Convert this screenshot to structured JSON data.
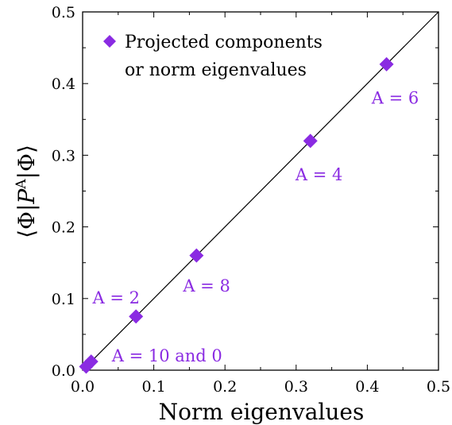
{
  "chart_data": {
    "type": "scatter",
    "xlabel": "Norm eigenvalues",
    "ylabel": "⟨Φ|P^A|Φ⟩",
    "ylabel_parts": {
      "left": "⟨Φ|",
      "P": "P",
      "sup": "A",
      "right": "|Φ⟩"
    },
    "xlim": [
      0,
      0.5
    ],
    "ylim": [
      0,
      0.5
    ],
    "x_ticks": [
      0.0,
      0.1,
      0.2,
      0.3,
      0.4,
      0.5
    ],
    "y_ticks": [
      0.0,
      0.1,
      0.2,
      0.3,
      0.4,
      0.5
    ],
    "x_tick_labels": [
      "0.0",
      "0.1",
      "0.2",
      "0.3",
      "0.4",
      "0.5"
    ],
    "y_tick_labels": [
      "0.0",
      "0.1",
      "0.2",
      "0.3",
      "0.4",
      "0.5"
    ],
    "grid": false,
    "legend": {
      "placement": "top-left",
      "entries": [
        "Projected components",
        "or norm eigenvalues"
      ]
    },
    "diagonal_line": {
      "from": [
        0,
        0
      ],
      "to": [
        0.5,
        0.5
      ],
      "color": "#000000"
    },
    "series": [
      {
        "name": "Projected components or norm eigenvalues",
        "color": "#8a2be2",
        "marker": "diamond",
        "points": [
          {
            "x": 0.005,
            "y": 0.005
          },
          {
            "x": 0.012,
            "y": 0.012
          },
          {
            "x": 0.075,
            "y": 0.075
          },
          {
            "x": 0.16,
            "y": 0.16
          },
          {
            "x": 0.32,
            "y": 0.32
          },
          {
            "x": 0.427,
            "y": 0.427
          }
        ]
      }
    ],
    "annotations": [
      {
        "text": "A = 10 and 0",
        "x": 0.041,
        "y": 0.012
      },
      {
        "text": "A = 2",
        "x": 0.014,
        "y": 0.093
      },
      {
        "text": "A = 8",
        "x": 0.141,
        "y": 0.11
      },
      {
        "text": "A = 4",
        "x": 0.299,
        "y": 0.265
      },
      {
        "text": "A = 6",
        "x": 0.406,
        "y": 0.372
      }
    ]
  }
}
